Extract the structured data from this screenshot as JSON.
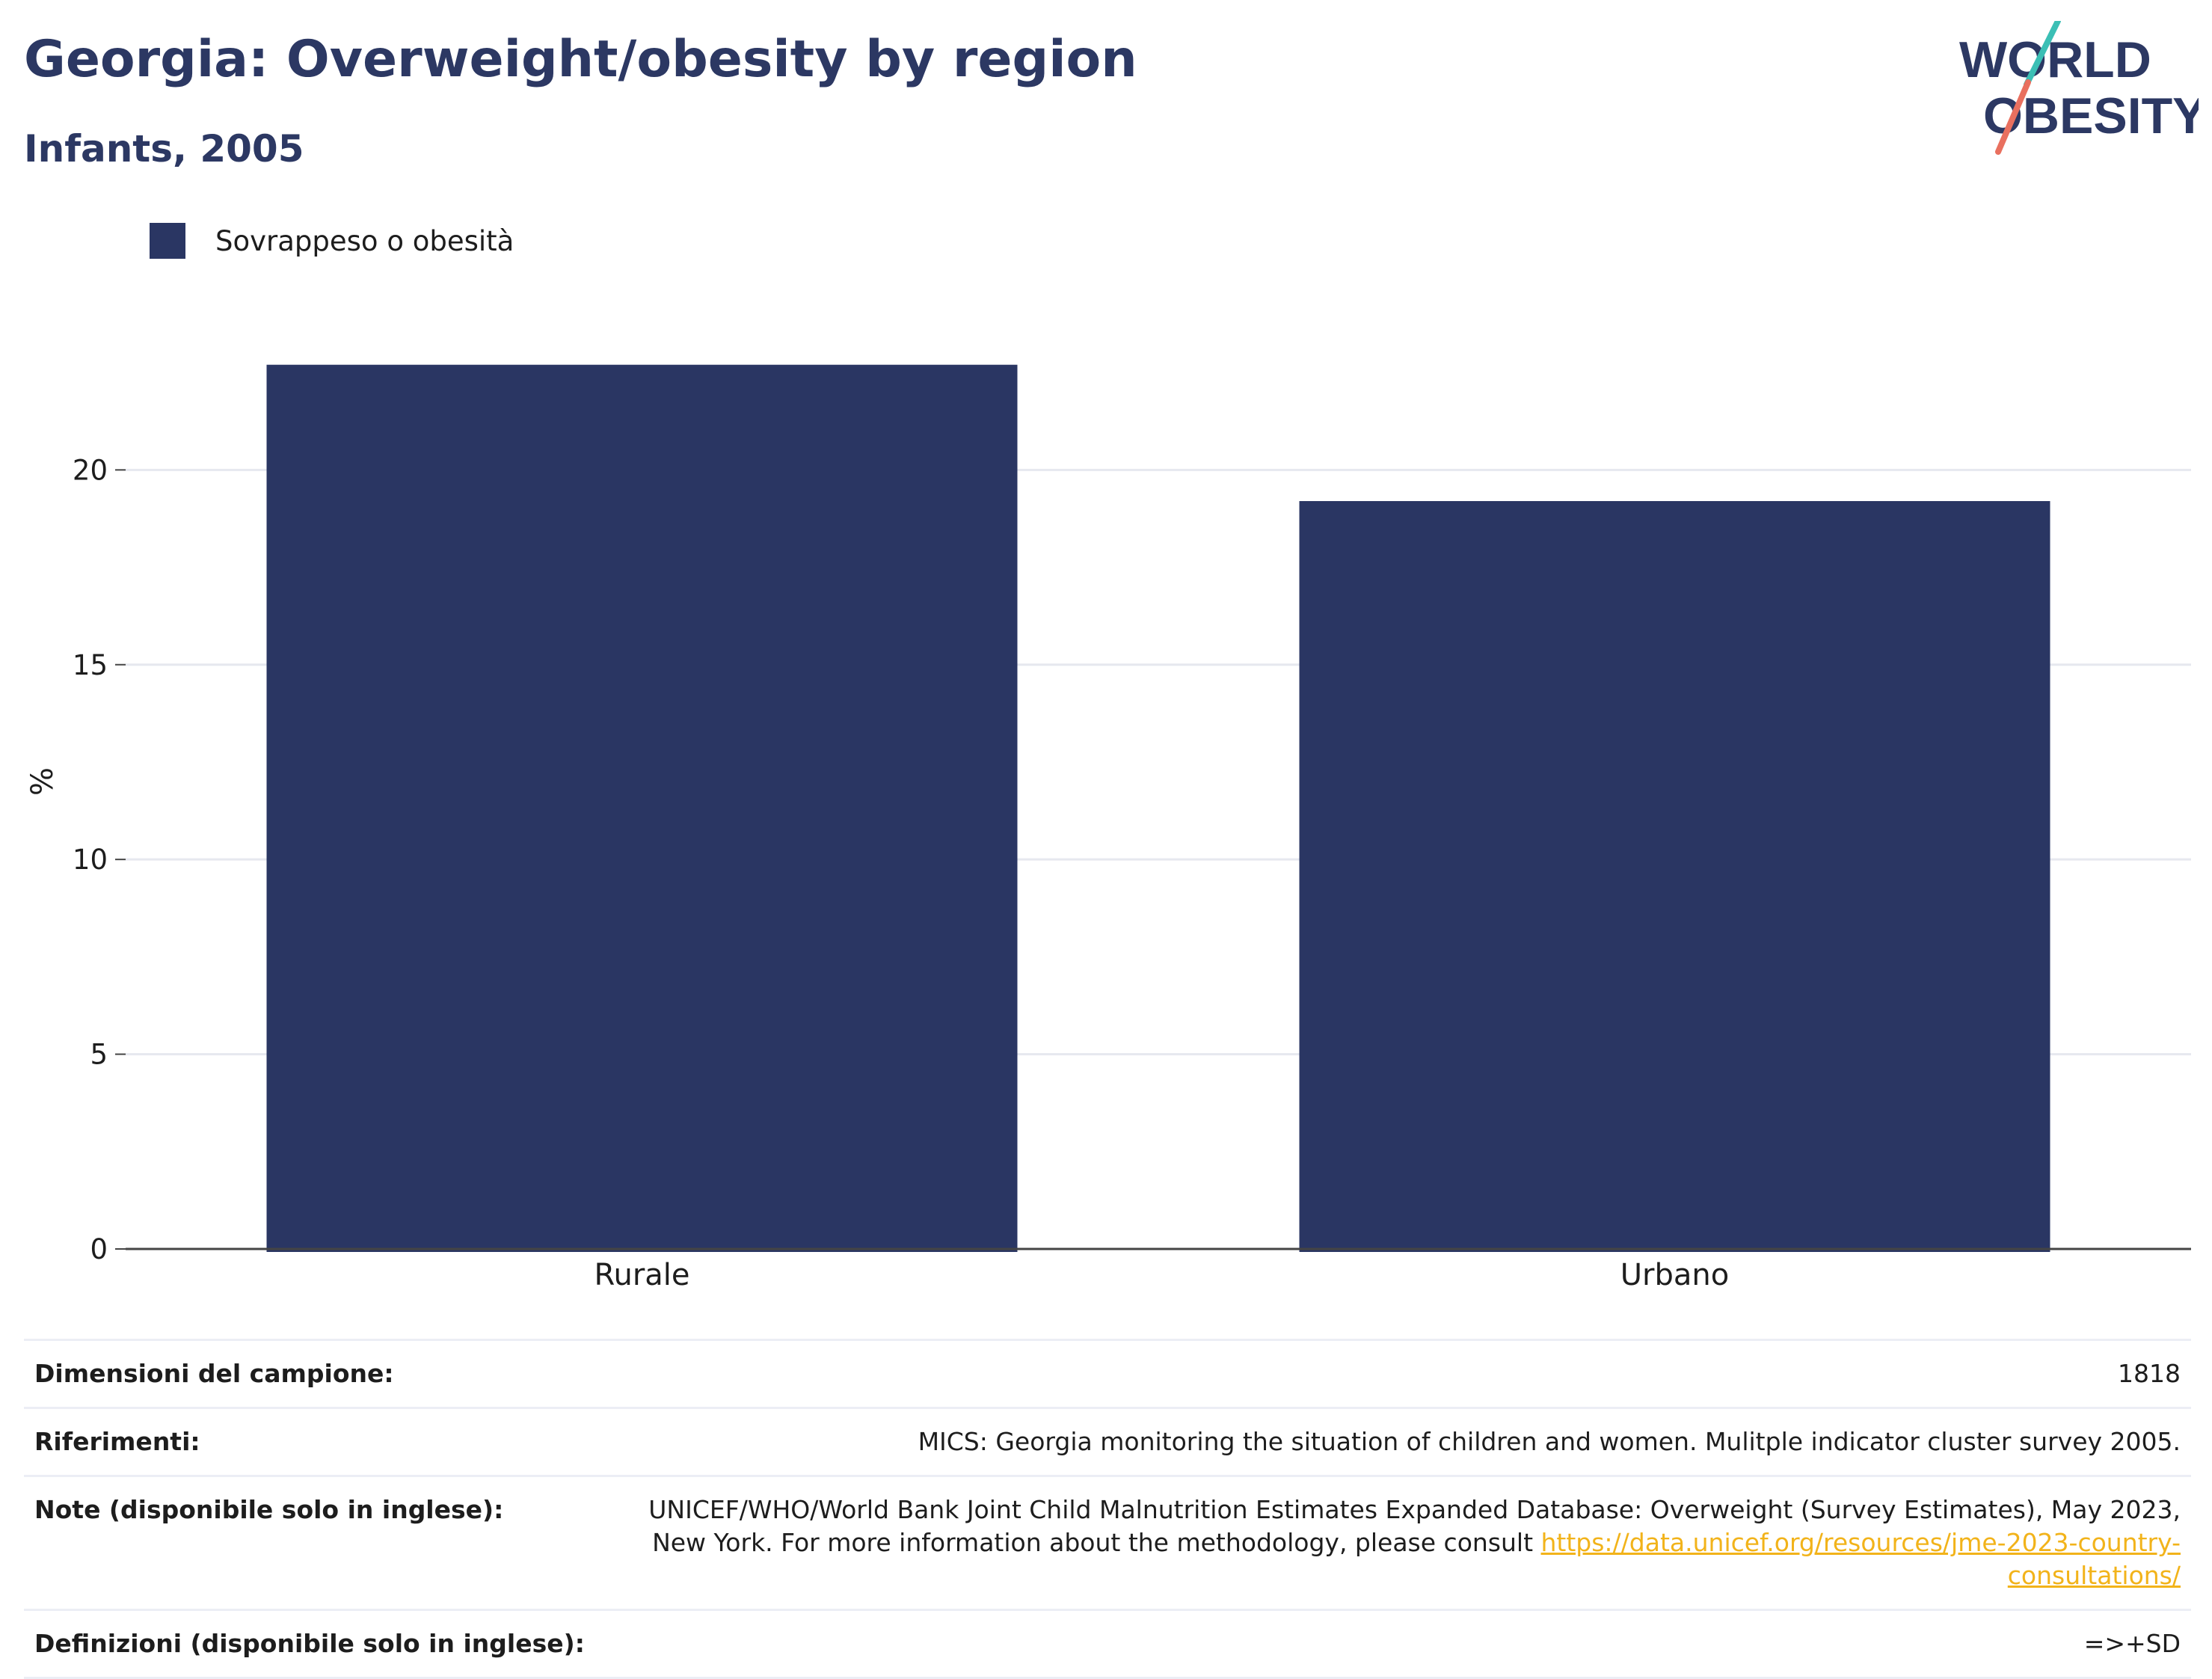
{
  "header": {
    "title": "Georgia: Overweight/obesity by region",
    "subtitle": "Infants, 2005"
  },
  "logo": {
    "line1": "WORLD",
    "line2": "OBESITY"
  },
  "legend": {
    "label": "Sovrappeso o obesità",
    "color": "#2a3663"
  },
  "chart_data": {
    "type": "bar",
    "categories": [
      "Rurale",
      "Urbano"
    ],
    "series": [
      {
        "name": "Sovrappeso o obesità",
        "values": [
          22.7,
          19.2
        ]
      }
    ],
    "ylabel": "%",
    "xlabel": "",
    "ylim": [
      0,
      24
    ],
    "yticks": [
      0,
      5,
      10,
      15,
      20
    ],
    "grid": true,
    "bar_color": "#2a3663"
  },
  "info": {
    "sample_size_label": "Dimensioni del campione:",
    "sample_size_value": "1818",
    "references_label": "Riferimenti:",
    "references_value": "MICS: Georgia monitoring the situation of children and women. Mulitple indicator cluster survey 2005.",
    "notes_label": "Note (disponibile solo in inglese):",
    "notes_value": "UNICEF/WHO/World Bank Joint Child Malnutrition Estimates Expanded Database: Overweight (Survey Estimates), May 2023, New York. For more information about the methodology, please consult ",
    "notes_link": "https://data.unicef.org/resources/jme-2023-country-consultations/",
    "definitions_label": "Definizioni (disponibile solo in inglese):",
    "definitions_value": "=>+SD"
  }
}
